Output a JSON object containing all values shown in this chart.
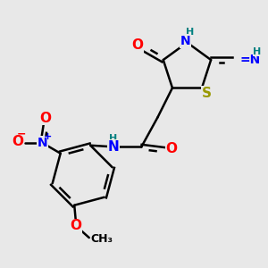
{
  "background_color": "#e8e8e8",
  "bond_color": "#000000",
  "bond_width": 1.8,
  "atom_colors": {
    "O": "#ff0000",
    "N": "#0000ff",
    "S": "#999900",
    "H": "#008080",
    "C": "#000000"
  },
  "font_size": 10,
  "figsize": [
    3.0,
    3.0
  ],
  "dpi": 100
}
